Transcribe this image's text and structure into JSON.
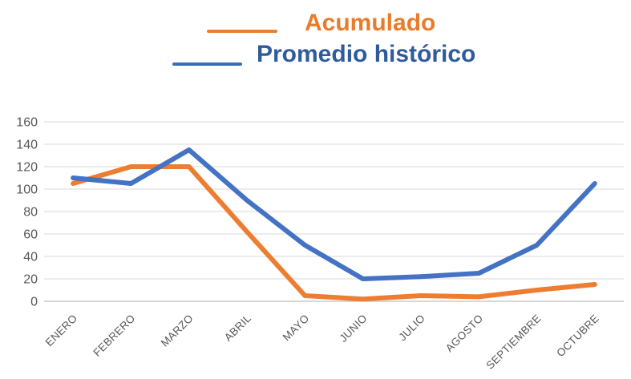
{
  "legend": {
    "items": [
      {
        "label": "Acumulado",
        "line_color": "#ED7D31",
        "text_color": "#E87C2A"
      },
      {
        "label": "Promedio histórico",
        "line_color": "#3A6BB5",
        "text_color": "#2E5B9C"
      }
    ]
  },
  "chart_data": {
    "type": "line",
    "categories": [
      "ENERO",
      "FEBRERO",
      "MARZO",
      "ABRIL",
      "MAYO",
      "JUNIO",
      "JULIO",
      "AGOSTO",
      "SEPTIEMBRE",
      "OCTUBRE"
    ],
    "series": [
      {
        "name": "Acumulado",
        "color": "#ED7D31",
        "values": [
          105,
          120,
          120,
          62,
          5,
          2,
          5,
          4,
          10,
          15
        ]
      },
      {
        "name": "Promedio histórico",
        "color": "#4472C4",
        "values": [
          110,
          105,
          135,
          90,
          50,
          20,
          22,
          25,
          50,
          105
        ]
      }
    ],
    "title": "",
    "xlabel": "",
    "ylabel": "",
    "ylim": [
      0,
      160
    ],
    "y_tick_step": 20,
    "y_tick_labels": [
      "0",
      "20",
      "40",
      "60",
      "80",
      "100",
      "120",
      "140",
      "160"
    ],
    "grid": true,
    "legend_position": "top",
    "gridline_color": "#D9D9D9",
    "baseline_color": "#BFBFBF",
    "axis_label_color": "#595959"
  }
}
